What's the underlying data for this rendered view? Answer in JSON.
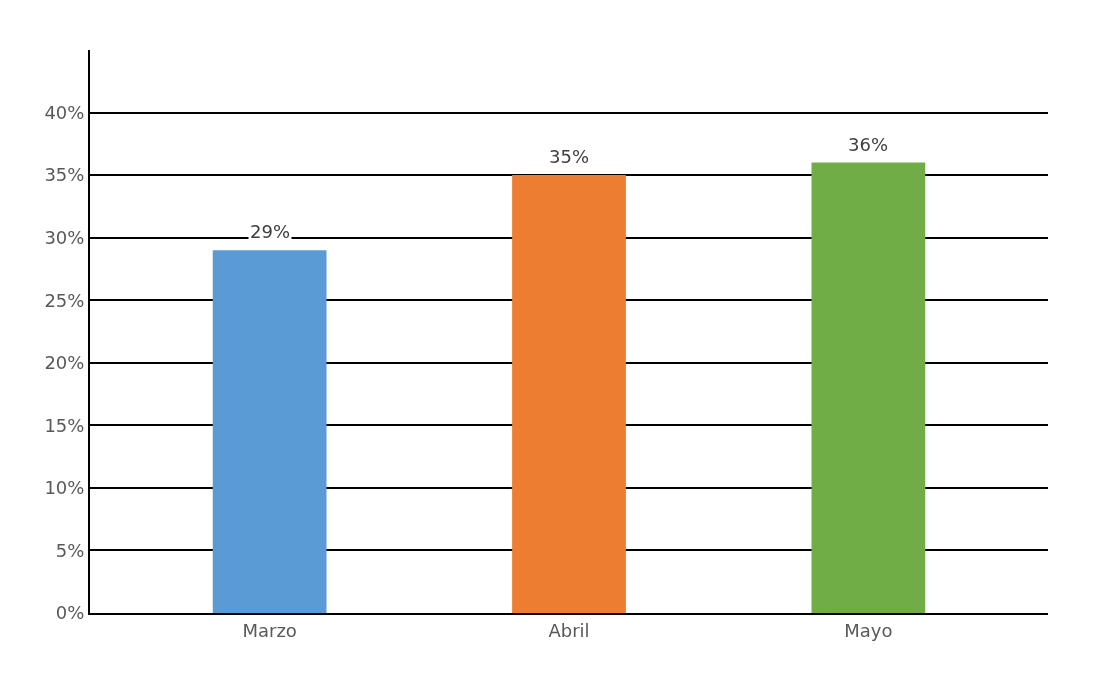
{
  "chart_data": {
    "type": "bar",
    "categories": [
      "Marzo",
      "Abril",
      "Mayo"
    ],
    "values": [
      29,
      35,
      36
    ],
    "colors": [
      "#5b9bd5",
      "#ed7d31",
      "#70ad47"
    ],
    "value_labels": [
      "29%",
      "35%",
      "36%"
    ],
    "ylim": [
      0,
      45
    ],
    "yticks": [
      {
        "value": 0,
        "label": "0%"
      },
      {
        "value": 5,
        "label": "5%"
      },
      {
        "value": 10,
        "label": "10%"
      },
      {
        "value": 15,
        "label": "15%"
      },
      {
        "value": 20,
        "label": "20%"
      },
      {
        "value": 25,
        "label": "25%"
      },
      {
        "value": 30,
        "label": "30%"
      },
      {
        "value": 35,
        "label": "35%"
      },
      {
        "value": 40,
        "label": "40%"
      }
    ],
    "grid": "y"
  }
}
